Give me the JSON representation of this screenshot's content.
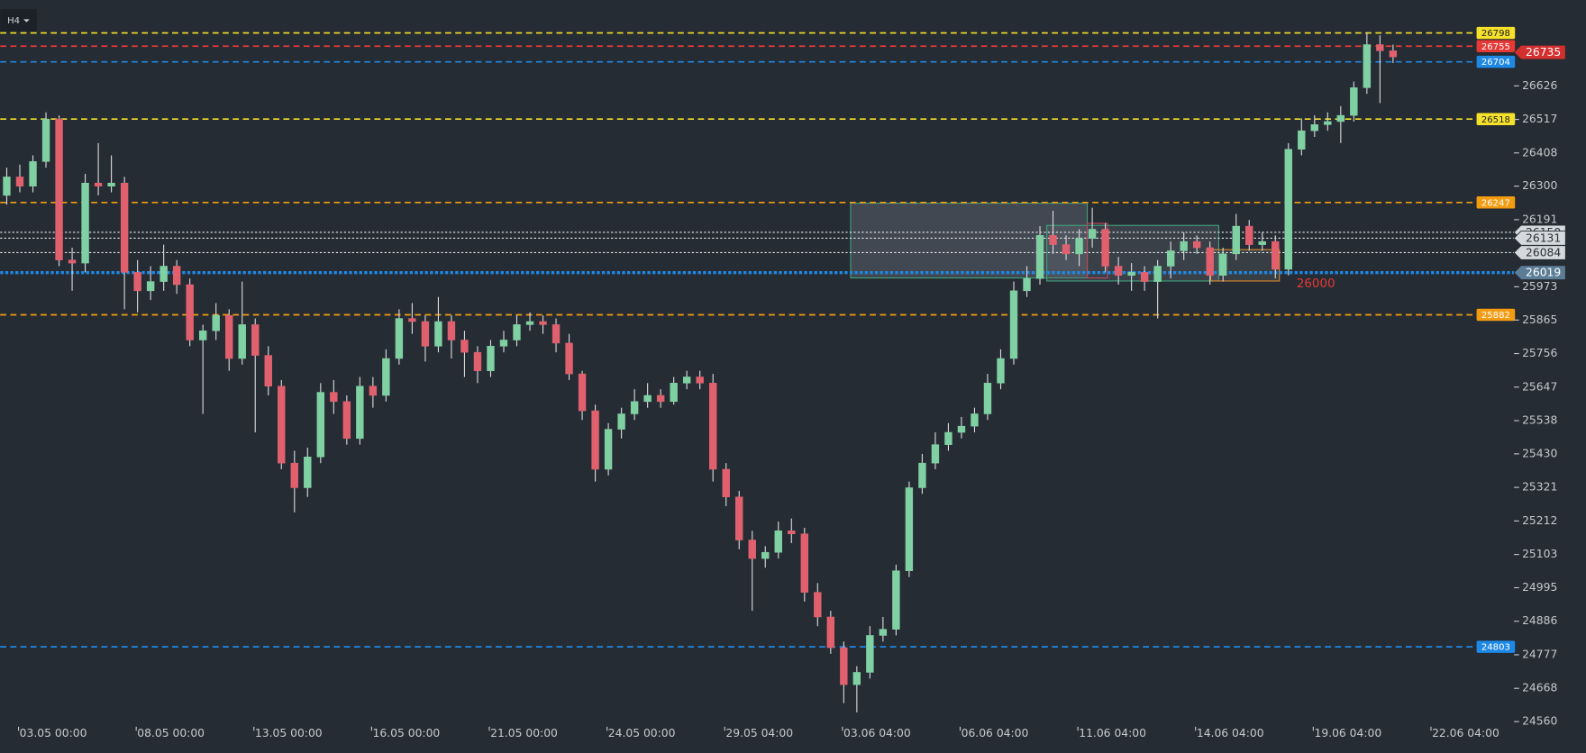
{
  "timeframe": "H4",
  "chart_data": {
    "type": "candlestick",
    "up_color": "#7fd0a2",
    "down_color": "#e0606e",
    "wick_color": "#d7dadd",
    "open": [
      26270,
      26330,
      26300,
      26380,
      26518,
      26060,
      26050,
      26310,
      26300,
      26310,
      26020,
      25960,
      25990,
      26040,
      25980,
      25800,
      25830,
      25880,
      25740,
      25850,
      25750,
      25650,
      25400,
      25320,
      25420,
      25630,
      25600,
      25480,
      25650,
      25620,
      25740,
      25870,
      25860,
      25780,
      25860,
      25800,
      25760,
      25700,
      25780,
      25800,
      25850,
      25860,
      25850,
      25790,
      25690,
      25570,
      25380,
      25510,
      25560,
      25600,
      25620,
      25600,
      25660,
      25680,
      25660,
      25380,
      25290,
      25150,
      25090,
      25110,
      25180,
      25170,
      24980,
      24900,
      24800,
      24680,
      24720,
      24840,
      24860,
      25050,
      25320,
      25400,
      25460,
      25500,
      25520,
      25560,
      25660,
      25740,
      25960,
      26000,
      26140,
      26110,
      26080,
      26130,
      26160,
      26040,
      26010,
      26020,
      25990,
      26040,
      26090,
      26120,
      26100,
      26010,
      26080,
      26170,
      26110,
      26120,
      26030,
      26420,
      26480,
      26500,
      26510,
      26530,
      26620,
      26760,
      26740
    ],
    "high": [
      26360,
      26370,
      26400,
      26540,
      26530,
      26100,
      26340,
      26440,
      26400,
      26330,
      26060,
      26040,
      26110,
      26060,
      26000,
      25850,
      25920,
      25900,
      25990,
      25870,
      25780,
      25670,
      25440,
      25450,
      25660,
      25670,
      25620,
      25680,
      25680,
      25770,
      25900,
      25920,
      25880,
      25940,
      25880,
      25830,
      25780,
      25800,
      25830,
      25880,
      25890,
      25880,
      25870,
      25820,
      25700,
      25590,
      25530,
      25580,
      25640,
      25660,
      25640,
      25680,
      25700,
      25700,
      25690,
      25400,
      25310,
      25180,
      25130,
      25210,
      25220,
      25190,
      25010,
      24920,
      24820,
      24740,
      24870,
      24900,
      25070,
      25340,
      25430,
      25500,
      25530,
      25550,
      25580,
      25690,
      25770,
      25990,
      26040,
      26170,
      26220,
      26140,
      26160,
      26230,
      26180,
      26070,
      26050,
      26040,
      26060,
      26120,
      26150,
      26140,
      26120,
      26100,
      26210,
      26190,
      26150,
      26140,
      26440,
      26520,
      26530,
      26540,
      26560,
      26640,
      26800,
      26790,
      26760
    ],
    "low": [
      26240,
      26280,
      26280,
      26360,
      26040,
      25960,
      26020,
      26270,
      26280,
      25900,
      25890,
      25930,
      25960,
      25950,
      25780,
      25560,
      25800,
      25700,
      25720,
      25500,
      25620,
      25380,
      25240,
      25290,
      25400,
      25560,
      25460,
      25460,
      25580,
      25600,
      25720,
      25820,
      25730,
      25760,
      25740,
      25680,
      25660,
      25680,
      25760,
      25780,
      25830,
      25820,
      25760,
      25670,
      25540,
      25340,
      25360,
      25480,
      25540,
      25580,
      25580,
      25590,
      25640,
      25640,
      25340,
      25260,
      25120,
      24920,
      25060,
      25090,
      25140,
      24950,
      24870,
      24780,
      24620,
      24590,
      24700,
      24820,
      24840,
      25030,
      25300,
      25380,
      25440,
      25480,
      25500,
      25540,
      25640,
      25720,
      25940,
      25980,
      26080,
      26060,
      26040,
      26100,
      26020,
      25980,
      25960,
      25960,
      25870,
      26000,
      26060,
      26080,
      25980,
      25990,
      26060,
      26090,
      26090,
      26000,
      26010,
      26400,
      26460,
      26480,
      26440,
      26510,
      26600,
      26570,
      26700
    ],
    "close": [
      26330,
      26300,
      26380,
      26518,
      26060,
      26050,
      26310,
      26300,
      26310,
      26020,
      25960,
      25990,
      26040,
      25980,
      25800,
      25830,
      25880,
      25740,
      25850,
      25750,
      25650,
      25400,
      25320,
      25420,
      25630,
      25600,
      25480,
      25650,
      25620,
      25740,
      25870,
      25860,
      25780,
      25860,
      25800,
      25760,
      25700,
      25780,
      25800,
      25850,
      25860,
      25850,
      25790,
      25690,
      25570,
      25380,
      25510,
      25560,
      25600,
      25620,
      25600,
      25660,
      25680,
      25660,
      25380,
      25290,
      25150,
      25090,
      25110,
      25180,
      25170,
      24980,
      24900,
      24800,
      24680,
      24720,
      24840,
      24860,
      25050,
      25320,
      25400,
      25460,
      25500,
      25520,
      25560,
      25660,
      25740,
      25960,
      26000,
      26140,
      26110,
      26080,
      26130,
      26160,
      26040,
      26010,
      26020,
      25990,
      26040,
      26090,
      26120,
      26100,
      26010,
      26080,
      26170,
      26110,
      26120,
      26030,
      26420,
      26480,
      26500,
      26510,
      26530,
      26620,
      26760,
      26740,
      26720
    ],
    "xlim": [
      0,
      112.5
    ],
    "xticks": [
      {
        "value": 1.4,
        "label": "03.05 00:00"
      },
      {
        "value": 10.4,
        "label": "08.05 00:00"
      },
      {
        "value": 19.4,
        "label": "13.05 00:00"
      },
      {
        "value": 28.4,
        "label": "16.05 00:00"
      },
      {
        "value": 37.4,
        "label": "21.05 00:00"
      },
      {
        "value": 46.4,
        "label": "24.05 00:00"
      },
      {
        "value": 55.4,
        "label": "29.05 04:00"
      },
      {
        "value": 64.4,
        "label": "03.06 04:00"
      },
      {
        "value": 73.4,
        "label": "06.06 04:00"
      },
      {
        "value": 82.4,
        "label": "11.06 04:00"
      },
      {
        "value": 91.4,
        "label": "14.06 04:00"
      },
      {
        "value": 100.4,
        "label": "19.06 04:00"
      },
      {
        "value": 109.4,
        "label": "22.06 04:00"
      }
    ],
    "ylim": [
      24540,
      26905
    ],
    "yticks": [
      24560,
      24668,
      24777,
      24886,
      24995,
      25103,
      25212,
      25321,
      25430,
      25538,
      25647,
      25756,
      25865,
      25973,
      26191,
      26300,
      26408,
      26517,
      26626
    ],
    "levels": [
      {
        "value": 26798,
        "color": "#f5e12b",
        "style": "dashed",
        "tag": "small"
      },
      {
        "value": 26755,
        "color": "#e53935",
        "style": "dashed",
        "tag": "small"
      },
      {
        "value": 26735,
        "color": "#d32f2f",
        "style": "none",
        "tag": "large"
      },
      {
        "value": 26704,
        "color": "#1e88e5",
        "style": "dashed",
        "tag": "small"
      },
      {
        "value": 26518,
        "color": "#f5e12b",
        "style": "dashed",
        "tag": "small"
      },
      {
        "value": 26247,
        "color": "#f39c12",
        "style": "dashed",
        "tag": "small"
      },
      {
        "value": 26150,
        "color": "#e8eaed",
        "style": "dotted",
        "tag": "large"
      },
      {
        "value": 26131,
        "color": "#e8eaed",
        "style": "dotted",
        "tag": "large"
      },
      {
        "value": 26084,
        "color": "#e8eaed",
        "style": "dotted",
        "tag": "large"
      },
      {
        "value": 26019,
        "color": "#1e88e5",
        "style": "thick-dotted",
        "tag": "large"
      },
      {
        "value": 25882,
        "color": "#f39c12",
        "style": "dashed",
        "tag": "small"
      },
      {
        "value": 24803,
        "color": "#1e88e5",
        "style": "dashed",
        "tag": "small"
      }
    ],
    "annotations": [
      {
        "text": "26000",
        "color": "#e53935"
      }
    ]
  }
}
